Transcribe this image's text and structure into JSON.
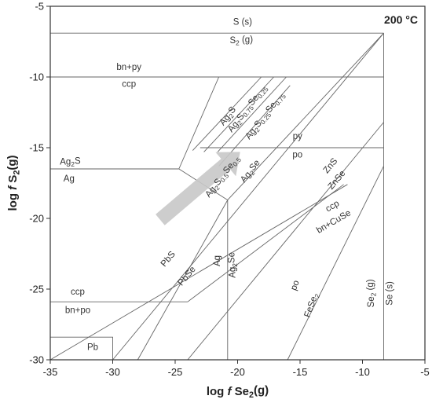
{
  "chart_data": {
    "type": "phase-diagram",
    "title": "200 °C",
    "xlabel_parts": [
      "log ",
      "f",
      " Se",
      "2",
      "(g)"
    ],
    "ylabel_parts": [
      "log ",
      "f",
      " S",
      "2",
      "(g)"
    ],
    "xlim": [
      -35,
      -5
    ],
    "ylim": [
      -30,
      -5
    ],
    "xticks": [
      -35,
      -30,
      -25,
      -20,
      -15,
      -10,
      -5
    ],
    "yticks": [
      -30,
      -25,
      -20,
      -15,
      -10,
      -5
    ],
    "grid": false,
    "boundaries": [
      {
        "name": "S(s)/S2(g)",
        "points": [
          [
            -35,
            -6.9
          ],
          [
            -8.3,
            -6.9
          ]
        ]
      },
      {
        "name": "Se(s)/Se2(g)",
        "points": [
          [
            -8.3,
            -6.9
          ],
          [
            -8.3,
            -30
          ]
        ]
      },
      {
        "name": "bn+py/ccp",
        "points": [
          [
            -35,
            -10
          ],
          [
            -8.3,
            -10
          ]
        ]
      },
      {
        "name": "py/po",
        "points": [
          [
            -23,
            -15
          ],
          [
            -8.3,
            -15
          ]
        ]
      },
      {
        "name": "Ag2S/Ag",
        "points": [
          [
            -35,
            -16.5
          ],
          [
            -24.7,
            -16.5
          ]
        ]
      },
      {
        "name": "Ag2S/Ag2Se",
        "points": [
          [
            -24.7,
            -16.5
          ],
          [
            -21.5,
            -10
          ]
        ]
      },
      {
        "name": "ccp/bn+po",
        "points": [
          [
            -35,
            -25.9
          ],
          [
            -24,
            -25.9
          ]
        ]
      },
      {
        "name": "ccp/bn+po-cont",
        "points": [
          [
            -24,
            -25.9
          ],
          [
            -11.5,
            -17.6
          ]
        ]
      },
      {
        "name": "ccp/bn+CuSe",
        "points": [
          [
            -35,
            -30
          ],
          [
            -11.2,
            -17.6
          ]
        ]
      },
      {
        "name": "Pb",
        "points": [
          [
            -35,
            -28.4
          ],
          [
            -30,
            -28.4
          ],
          [
            -30,
            -30
          ]
        ]
      },
      {
        "name": "PbS/PbSe",
        "points": [
          [
            -30,
            -30
          ],
          [
            -8.3,
            -6.9
          ]
        ]
      },
      {
        "name": "Ag/Ag2Se",
        "points": [
          [
            -20.8,
            -18.7
          ],
          [
            -20.8,
            -30
          ]
        ]
      },
      {
        "name": "Ag2S/Ag2Se-diag",
        "points": [
          [
            -24.7,
            -16.5
          ],
          [
            -20.8,
            -18.7
          ]
        ]
      },
      {
        "name": "Ag-Se-low",
        "points": [
          [
            -28,
            -30
          ],
          [
            -20.8,
            -18.7
          ]
        ]
      },
      {
        "name": "ZnS/ZnSe",
        "points": [
          [
            -24,
            -30
          ],
          [
            -8.3,
            -13.2
          ]
        ]
      },
      {
        "name": "po/FeSe2",
        "points": [
          [
            -16,
            -30
          ],
          [
            -8.3,
            -16.3
          ]
        ]
      },
      {
        "name": "solid-solution-1",
        "points": [
          [
            -23.6,
            -15.2
          ],
          [
            -18.1,
            -10
          ]
        ]
      },
      {
        "name": "solid-solution-2",
        "points": [
          [
            -22.7,
            -15.3
          ],
          [
            -17.1,
            -10
          ]
        ]
      },
      {
        "name": "solid-solution-3",
        "points": [
          [
            -21.6,
            -15.3
          ],
          [
            -16.1,
            -10
          ]
        ]
      },
      {
        "name": "solid-solution-4",
        "points": [
          [
            -21.5,
            -16.3
          ],
          [
            -15.8,
            -10.6
          ]
        ]
      },
      {
        "name": "Ag2Se-upper",
        "points": [
          [
            -20.8,
            -18.7
          ],
          [
            -8.3,
            -6.9
          ]
        ]
      }
    ],
    "arrow": {
      "from": [
        -26.2,
        -20.1
      ],
      "to": [
        -19.8,
        -15.3
      ]
    },
    "annotations": [
      {
        "text_parts": [
          "S (s)"
        ],
        "x": -19.6,
        "y": -6.3
      },
      {
        "text_parts": [
          "S",
          "2",
          " (g)"
        ],
        "x": -19.7,
        "y": -7.6
      },
      {
        "text_parts": [
          "bn+py"
        ],
        "x": -28.7,
        "y": -9.5
      },
      {
        "text_parts": [
          "ccp"
        ],
        "x": -28.7,
        "y": -10.7
      },
      {
        "text_parts": [
          "py"
        ],
        "x": -15.2,
        "y": -14.4
      },
      {
        "text_parts": [
          "po"
        ],
        "x": -15.2,
        "y": -15.7
      },
      {
        "text_parts": [
          "Ag",
          "2",
          "S"
        ],
        "x": -33.4,
        "y": -16.2
      },
      {
        "text_parts": [
          "Ag"
        ],
        "x": -33.5,
        "y": -17.4
      },
      {
        "text_parts": [
          "ccp"
        ],
        "x": -32.8,
        "y": -25.4
      },
      {
        "text_parts": [
          "bn+po"
        ],
        "x": -32.8,
        "y": -26.7
      },
      {
        "text_parts": [
          "Pb"
        ],
        "x": -31.6,
        "y": -29.3
      },
      {
        "text_parts": [
          "PbS"
        ],
        "x": -25.4,
        "y": -23.0,
        "rotate": -50
      },
      {
        "text_parts": [
          "PbSe"
        ],
        "x": -23.9,
        "y": -24.2,
        "rotate": -50
      },
      {
        "text_parts": [
          "Ag"
        ],
        "x": -21.4,
        "y": -23.0,
        "rotate": -90
      },
      {
        "text_parts": [
          "Ag",
          "2",
          "Se"
        ],
        "x": -20.2,
        "y": -23.3,
        "rotate": -90
      },
      {
        "text_parts": [
          "ZnS"
        ],
        "x": -12.4,
        "y": -16.4,
        "rotate": -50
      },
      {
        "text_parts": [
          "ZnSe"
        ],
        "x": -11.9,
        "y": -17.4,
        "rotate": -50
      },
      {
        "text_parts": [
          "ccp"
        ],
        "x": -12.3,
        "y": -19.3,
        "rotate": -30
      },
      {
        "text_parts": [
          "bn+CuSe"
        ],
        "x": -12.2,
        "y": -20.4,
        "rotate": -30
      },
      {
        "text_parts": [
          "po"
        ],
        "x": -15.2,
        "y": -24.8,
        "rotate": -70
      },
      {
        "text_parts": [
          "FeSe",
          "2"
        ],
        "x": -13.9,
        "y": -26.2,
        "rotate": -70
      },
      {
        "text_parts": [
          "Se",
          "2",
          " (g)"
        ],
        "x": -9.1,
        "y": -25.3,
        "rotate": -90
      },
      {
        "text_parts": [
          "Se (s)"
        ],
        "x": -7.6,
        "y": -25.3,
        "rotate": -90
      },
      {
        "text_parts": [
          "Ag",
          "2",
          "S"
        ],
        "x": -20.6,
        "y": -12.9,
        "rotate": -50
      },
      {
        "text_parts": [
          "Ag",
          "2",
          "S",
          "0.75",
          "Se",
          "0.25"
        ],
        "x": -19.0,
        "y": -12.4,
        "rotate": -50
      },
      {
        "text_parts": [
          "Ag",
          "2",
          "S",
          "0.25",
          "Se",
          "0.75"
        ],
        "x": -17.6,
        "y": -12.9,
        "rotate": -50
      },
      {
        "text_parts": [
          "Ag",
          "2",
          "S",
          "0.5",
          "Se",
          "0.5"
        ],
        "x": -21.0,
        "y": -17.2,
        "rotate": -50
      },
      {
        "text_parts": [
          "Ag",
          "2",
          "Se"
        ],
        "x": -18.8,
        "y": -16.8,
        "rotate": -50
      }
    ]
  },
  "colors": {
    "line": "#666666",
    "arrow": "#c8c8c8",
    "text": "#222222"
  }
}
